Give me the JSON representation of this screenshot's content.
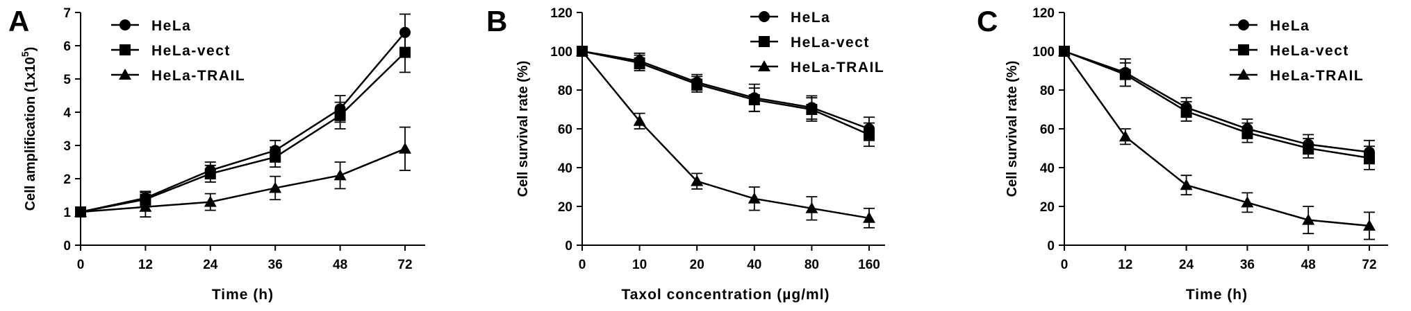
{
  "figure": {
    "series_styles": {
      "HeLa": {
        "marker": "circle",
        "color": "#000000"
      },
      "HeLa-vect": {
        "marker": "square",
        "color": "#000000"
      },
      "HeLa-TRAIL": {
        "marker": "triangle",
        "color": "#000000"
      }
    }
  },
  "chart_data": [
    {
      "panel": "A",
      "type": "line",
      "categories": [
        "0",
        "12",
        "24",
        "36",
        "48",
        "72"
      ],
      "xlabel": "Time  (h)",
      "ylabel": "Cell amplification (1x10",
      "ylabel_sup": "5",
      "ylabel_tail": ")",
      "ylim": [
        0,
        7
      ],
      "yticks": [
        0,
        1,
        2,
        3,
        4,
        5,
        6,
        7
      ],
      "legend_position": "top-left",
      "grid": false,
      "series": [
        {
          "name": "HeLa",
          "marker": "circle",
          "values": [
            1.0,
            1.42,
            2.25,
            2.85,
            4.1,
            6.4
          ],
          "errors": [
            0.06,
            0.2,
            0.25,
            0.3,
            0.4,
            0.55
          ]
        },
        {
          "name": "HeLa-vect",
          "marker": "square",
          "values": [
            1.0,
            1.38,
            2.15,
            2.65,
            3.9,
            5.8
          ],
          "errors": [
            0.06,
            0.2,
            0.25,
            0.3,
            0.4,
            0.6
          ]
        },
        {
          "name": "HeLa-TRAIL",
          "marker": "triangle",
          "values": [
            1.0,
            1.15,
            1.3,
            1.72,
            2.1,
            2.9
          ],
          "errors": [
            0.06,
            0.3,
            0.25,
            0.35,
            0.4,
            0.65
          ]
        }
      ]
    },
    {
      "panel": "B",
      "type": "line",
      "categories": [
        "0",
        "10",
        "20",
        "40",
        "80",
        "160"
      ],
      "xlabel": "Taxol concentration (µg/ml)",
      "ylabel": "Cell survival rate (%)",
      "ylim": [
        0,
        120
      ],
      "yticks": [
        0,
        20,
        40,
        60,
        80,
        100,
        120
      ],
      "legend_position": "top-right",
      "grid": false,
      "series": [
        {
          "name": "HeLa",
          "marker": "circle",
          "values": [
            100,
            95,
            84,
            76,
            71,
            60
          ],
          "errors": [
            0.5,
            4,
            4,
            7,
            6,
            6
          ]
        },
        {
          "name": "HeLa-vect",
          "marker": "square",
          "values": [
            100,
            94,
            83,
            75,
            70,
            57
          ],
          "errors": [
            0.5,
            4,
            4,
            6,
            6,
            6
          ]
        },
        {
          "name": "HeLa-TRAIL",
          "marker": "triangle",
          "values": [
            100,
            64,
            33,
            24,
            19,
            14
          ],
          "errors": [
            0.5,
            4,
            4,
            6,
            6,
            5
          ]
        }
      ]
    },
    {
      "panel": "C",
      "type": "line",
      "categories": [
        "0",
        "12",
        "24",
        "36",
        "48",
        "72"
      ],
      "xlabel": "Time  (h)",
      "ylabel": "Cell survival rate (%)",
      "ylim": [
        0,
        120
      ],
      "yticks": [
        0,
        20,
        40,
        60,
        80,
        100,
        120
      ],
      "legend_position": "top-right",
      "grid": false,
      "series": [
        {
          "name": "HeLa",
          "marker": "circle",
          "values": [
            100,
            89,
            71,
            60,
            52,
            48
          ],
          "errors": [
            0.5,
            7,
            5,
            5,
            5,
            6
          ]
        },
        {
          "name": "HeLa-vect",
          "marker": "square",
          "values": [
            100,
            88,
            69,
            58,
            50,
            45
          ],
          "errors": [
            0.5,
            6,
            5,
            5,
            5,
            6
          ]
        },
        {
          "name": "HeLa-TRAIL",
          "marker": "triangle",
          "values": [
            100,
            56,
            31,
            22,
            13,
            10
          ],
          "errors": [
            0.5,
            4,
            5,
            5,
            7,
            7
          ]
        }
      ]
    }
  ]
}
